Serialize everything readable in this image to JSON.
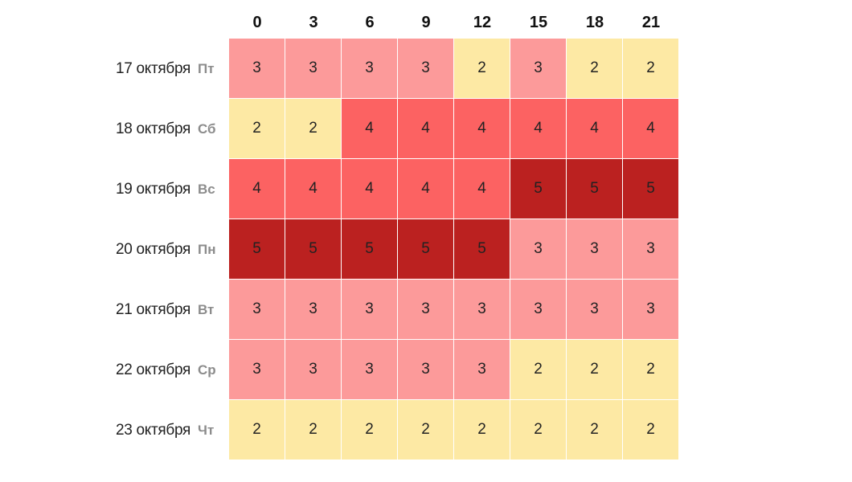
{
  "chart_data": {
    "type": "heatmap",
    "x": [
      "0",
      "3",
      "6",
      "9",
      "12",
      "15",
      "18",
      "21"
    ],
    "rows": [
      {
        "date": "17 октября",
        "day": "Пт",
        "values": [
          3,
          3,
          3,
          3,
          2,
          3,
          2,
          2
        ]
      },
      {
        "date": "18 октября",
        "day": "Сб",
        "values": [
          2,
          2,
          4,
          4,
          4,
          4,
          4,
          4
        ]
      },
      {
        "date": "19 октября",
        "day": "Вс",
        "values": [
          4,
          4,
          4,
          4,
          4,
          5,
          5,
          5
        ]
      },
      {
        "date": "20 октября",
        "day": "Пн",
        "values": [
          5,
          5,
          5,
          5,
          5,
          3,
          3,
          3
        ]
      },
      {
        "date": "21 октября",
        "day": "Вт",
        "values": [
          3,
          3,
          3,
          3,
          3,
          3,
          3,
          3
        ]
      },
      {
        "date": "22 октября",
        "day": "Ср",
        "values": [
          3,
          3,
          3,
          3,
          3,
          2,
          2,
          2
        ]
      },
      {
        "date": "23 октября",
        "day": "Чт",
        "values": [
          2,
          2,
          2,
          2,
          2,
          2,
          2,
          2
        ]
      }
    ],
    "color_scale": {
      "2": "#fde9a4",
      "3": "#fc9a9a",
      "4": "#fc6262",
      "5": "#bb2120"
    },
    "legend": "none",
    "grid": false
  }
}
